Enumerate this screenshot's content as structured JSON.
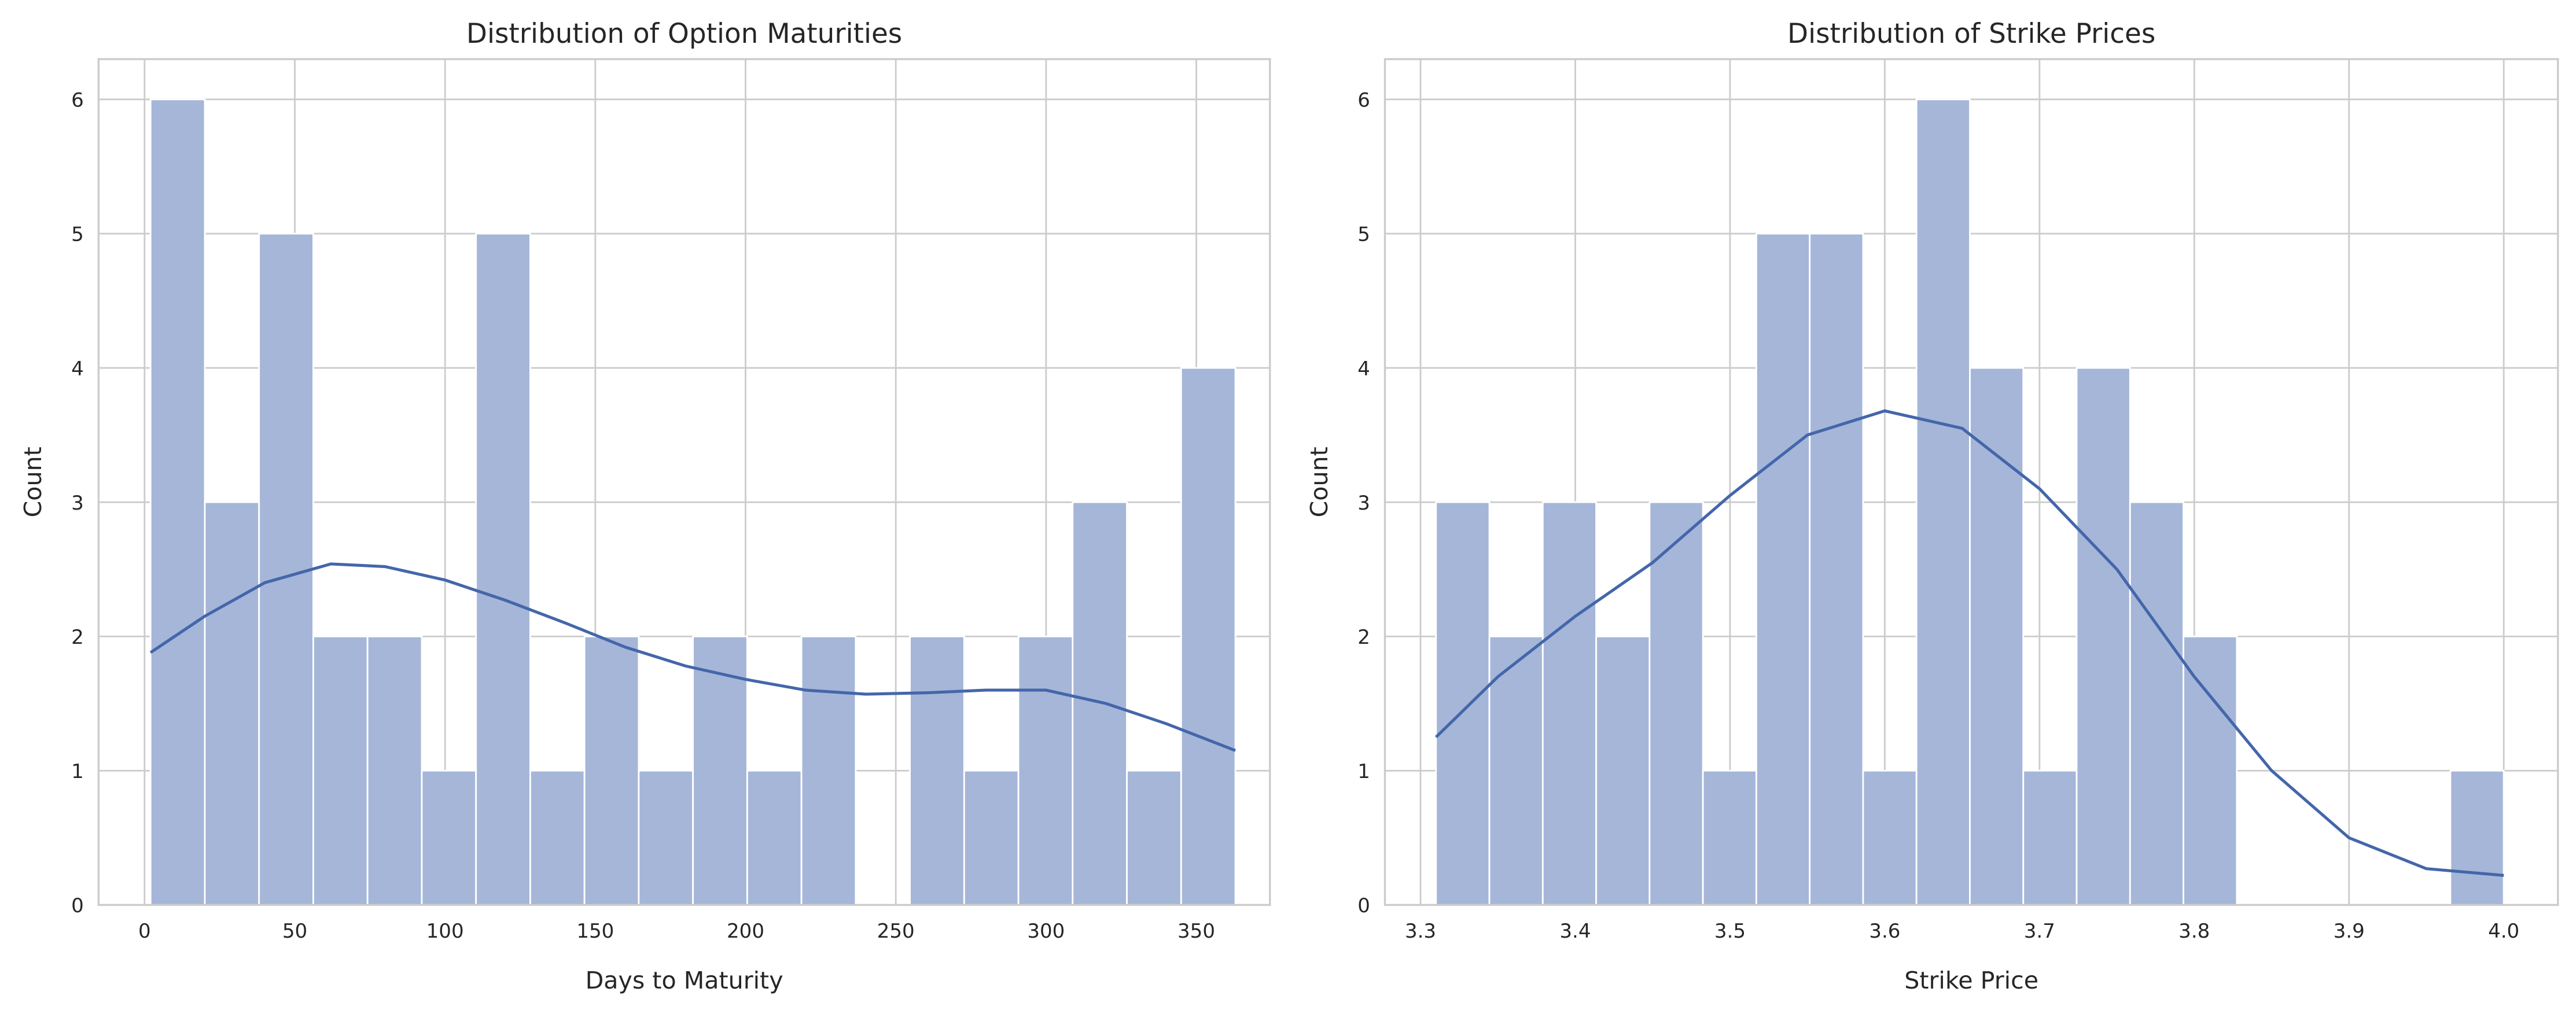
{
  "chart_data": [
    {
      "type": "histogram",
      "title": "Distribution of Option Maturities",
      "xlabel": "Days to Maturity",
      "ylabel": "Count",
      "bins": [
        2,
        20.05,
        38.1,
        56.15,
        74.2,
        92.25,
        110.3,
        128.35,
        146.4,
        164.45,
        182.5,
        200.55,
        218.6,
        236.65,
        254.7,
        272.75,
        290.8,
        308.85,
        326.9,
        344.95,
        363
      ],
      "counts": [
        6,
        3,
        5,
        2,
        2,
        1,
        5,
        1,
        2,
        1,
        2,
        1,
        2,
        0,
        2,
        1,
        2,
        3,
        1,
        4
      ],
      "kde": {
        "x": [
          2,
          20,
          40,
          62,
          80,
          100,
          120,
          140,
          160,
          180,
          200,
          220,
          240,
          260,
          280,
          300,
          320,
          340,
          363
        ],
        "y": [
          1.88,
          2.15,
          2.4,
          2.54,
          2.52,
          2.42,
          2.27,
          2.1,
          1.92,
          1.78,
          1.68,
          1.6,
          1.57,
          1.58,
          1.6,
          1.6,
          1.5,
          1.35,
          1.15
        ]
      },
      "color": "#a5b6d8",
      "line_color": "#4466aa",
      "xlim": [
        -15.3,
        374.5
      ],
      "ylim": [
        0,
        6.3
      ],
      "xticks": [
        0,
        50,
        100,
        150,
        200,
        250,
        300,
        350
      ],
      "yticks": [
        0,
        1,
        2,
        3,
        4,
        5,
        6
      ],
      "grid": true
    },
    {
      "type": "histogram",
      "title": "Distribution of Strike Prices",
      "xlabel": "Strike Price",
      "ylabel": "Count",
      "bins": [
        3.31,
        3.3445,
        3.379,
        3.4135,
        3.448,
        3.4825,
        3.517,
        3.5515,
        3.586,
        3.6205,
        3.655,
        3.6895,
        3.724,
        3.7585,
        3.793,
        3.8275,
        3.862,
        3.8965,
        3.931,
        3.9655,
        4.0
      ],
      "counts": [
        3,
        2,
        3,
        2,
        3,
        1,
        5,
        5,
        1,
        6,
        4,
        1,
        4,
        3,
        2,
        0,
        0,
        0,
        0,
        1
      ],
      "kde": {
        "x": [
          3.31,
          3.35,
          3.4,
          3.45,
          3.5,
          3.55,
          3.6,
          3.65,
          3.7,
          3.75,
          3.8,
          3.85,
          3.9,
          3.95,
          4.0
        ],
        "y": [
          1.25,
          1.7,
          2.15,
          2.55,
          3.05,
          3.5,
          3.68,
          3.55,
          3.1,
          2.5,
          1.7,
          1.0,
          0.5,
          0.27,
          0.22
        ]
      },
      "color": "#a5b6d8",
      "line_color": "#4466aa",
      "xlim": [
        3.277,
        4.035
      ],
      "ylim": [
        0,
        6.3
      ],
      "xticks": [
        3.3,
        3.4,
        3.5,
        3.6,
        3.7,
        3.8,
        3.9,
        {
          "value": 4,
          "label": "4.0"
        }
      ],
      "yticks": [
        0,
        1,
        2,
        3,
        4,
        5,
        6
      ],
      "grid": true
    }
  ]
}
